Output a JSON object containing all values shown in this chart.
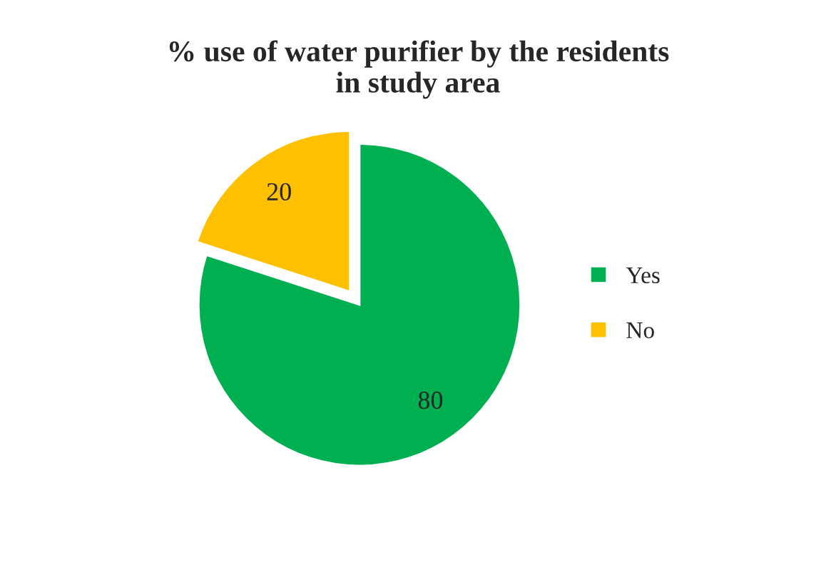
{
  "chart_data": {
    "type": "pie",
    "title": "% use of water purifier by the residents\nin study area",
    "categories": [
      "Yes",
      "No"
    ],
    "values": [
      80,
      20
    ],
    "colors": [
      "#00b050",
      "#ffc000"
    ],
    "data_labels": true,
    "legend": "right"
  }
}
